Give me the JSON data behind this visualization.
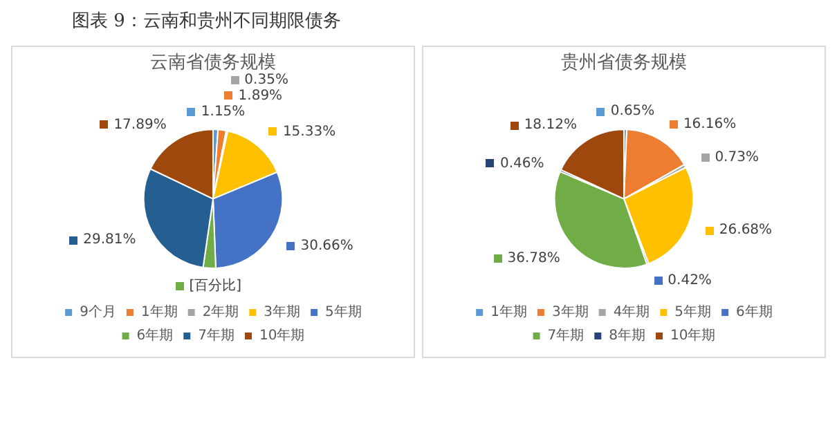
{
  "chart_data": [
    {
      "type": "pie",
      "title": "云南省债务规模",
      "annotations": [
        "图表 9：云南和贵州不同期限债务"
      ],
      "categories": [
        "9个月",
        "1年期",
        "2年期",
        "3年期",
        "5年期",
        "6年期",
        "7年期",
        "10年期"
      ],
      "values": [
        1.15,
        1.89,
        0.35,
        15.33,
        30.66,
        2.92,
        29.81,
        17.89
      ],
      "value_labels": [
        "1.15%",
        "1.89%",
        "0.35%",
        "15.33%",
        "30.66%",
        "[百分比]",
        "29.81%",
        "17.89%"
      ],
      "colors": [
        "#5b9bd5",
        "#ed7d31",
        "#a5a5a5",
        "#ffc000",
        "#4472c4",
        "#70ad47",
        "#255e91",
        "#9e480e"
      ],
      "legend": "bottom"
    },
    {
      "type": "pie",
      "title": "贵州省债务规模",
      "categories": [
        "1年期",
        "3年期",
        "4年期",
        "5年期",
        "6年期",
        "7年期",
        "8年期",
        "10年期"
      ],
      "values": [
        0.65,
        16.16,
        0.73,
        26.68,
        0.42,
        36.78,
        0.46,
        18.12
      ],
      "value_labels": [
        "0.65%",
        "16.16%",
        "0.73%",
        "26.68%",
        "0.42%",
        "36.78%",
        "0.46%",
        "18.12%"
      ],
      "colors": [
        "#5b9bd5",
        "#ed7d31",
        "#a5a5a5",
        "#ffc000",
        "#4472c4",
        "#70ad47",
        "#264478",
        "#9e480e"
      ],
      "legend": "bottom"
    }
  ]
}
